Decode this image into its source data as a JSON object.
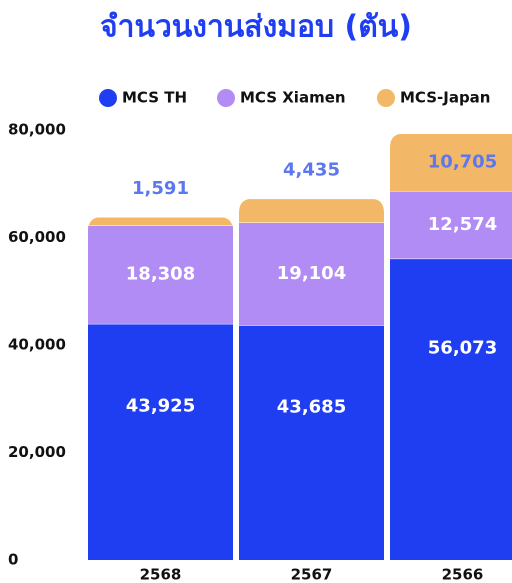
{
  "chart_data": {
    "type": "stacked_bar",
    "title": "จำนวนงานส่งมอบ (ตัน)",
    "categories": [
      "2568",
      "2567",
      "2566"
    ],
    "series": [
      {
        "name": "MCS TH",
        "color": "#1f3ef2",
        "values": [
          43925,
          43685,
          56073
        ],
        "value_labels": [
          "43,925",
          "43,685",
          "56,073"
        ],
        "label_color": "#ffffff"
      },
      {
        "name": "MCS Xiamen",
        "color": "#b08cf4",
        "values": [
          18308,
          19104,
          12574
        ],
        "value_labels": [
          "18,308",
          "19,104",
          "12,574"
        ],
        "label_color": "#ffffff"
      },
      {
        "name": "MCS-Japan",
        "color": "#f2b868",
        "values": [
          1591,
          4435,
          10705
        ],
        "value_labels": [
          "1,591",
          "4,435",
          "10,705"
        ],
        "label_color": "#5b78ee"
      }
    ],
    "ylim": [
      0,
      80000
    ],
    "yticks": [
      0,
      {
        "value": 20000,
        "label": "20,000"
      },
      {
        "value": 40000,
        "label": "40,000"
      },
      {
        "value": 60000,
        "label": "60,000"
      },
      {
        "value": 80000,
        "label": "80,000"
      }
    ],
    "title_color": "#1f3ef2"
  }
}
